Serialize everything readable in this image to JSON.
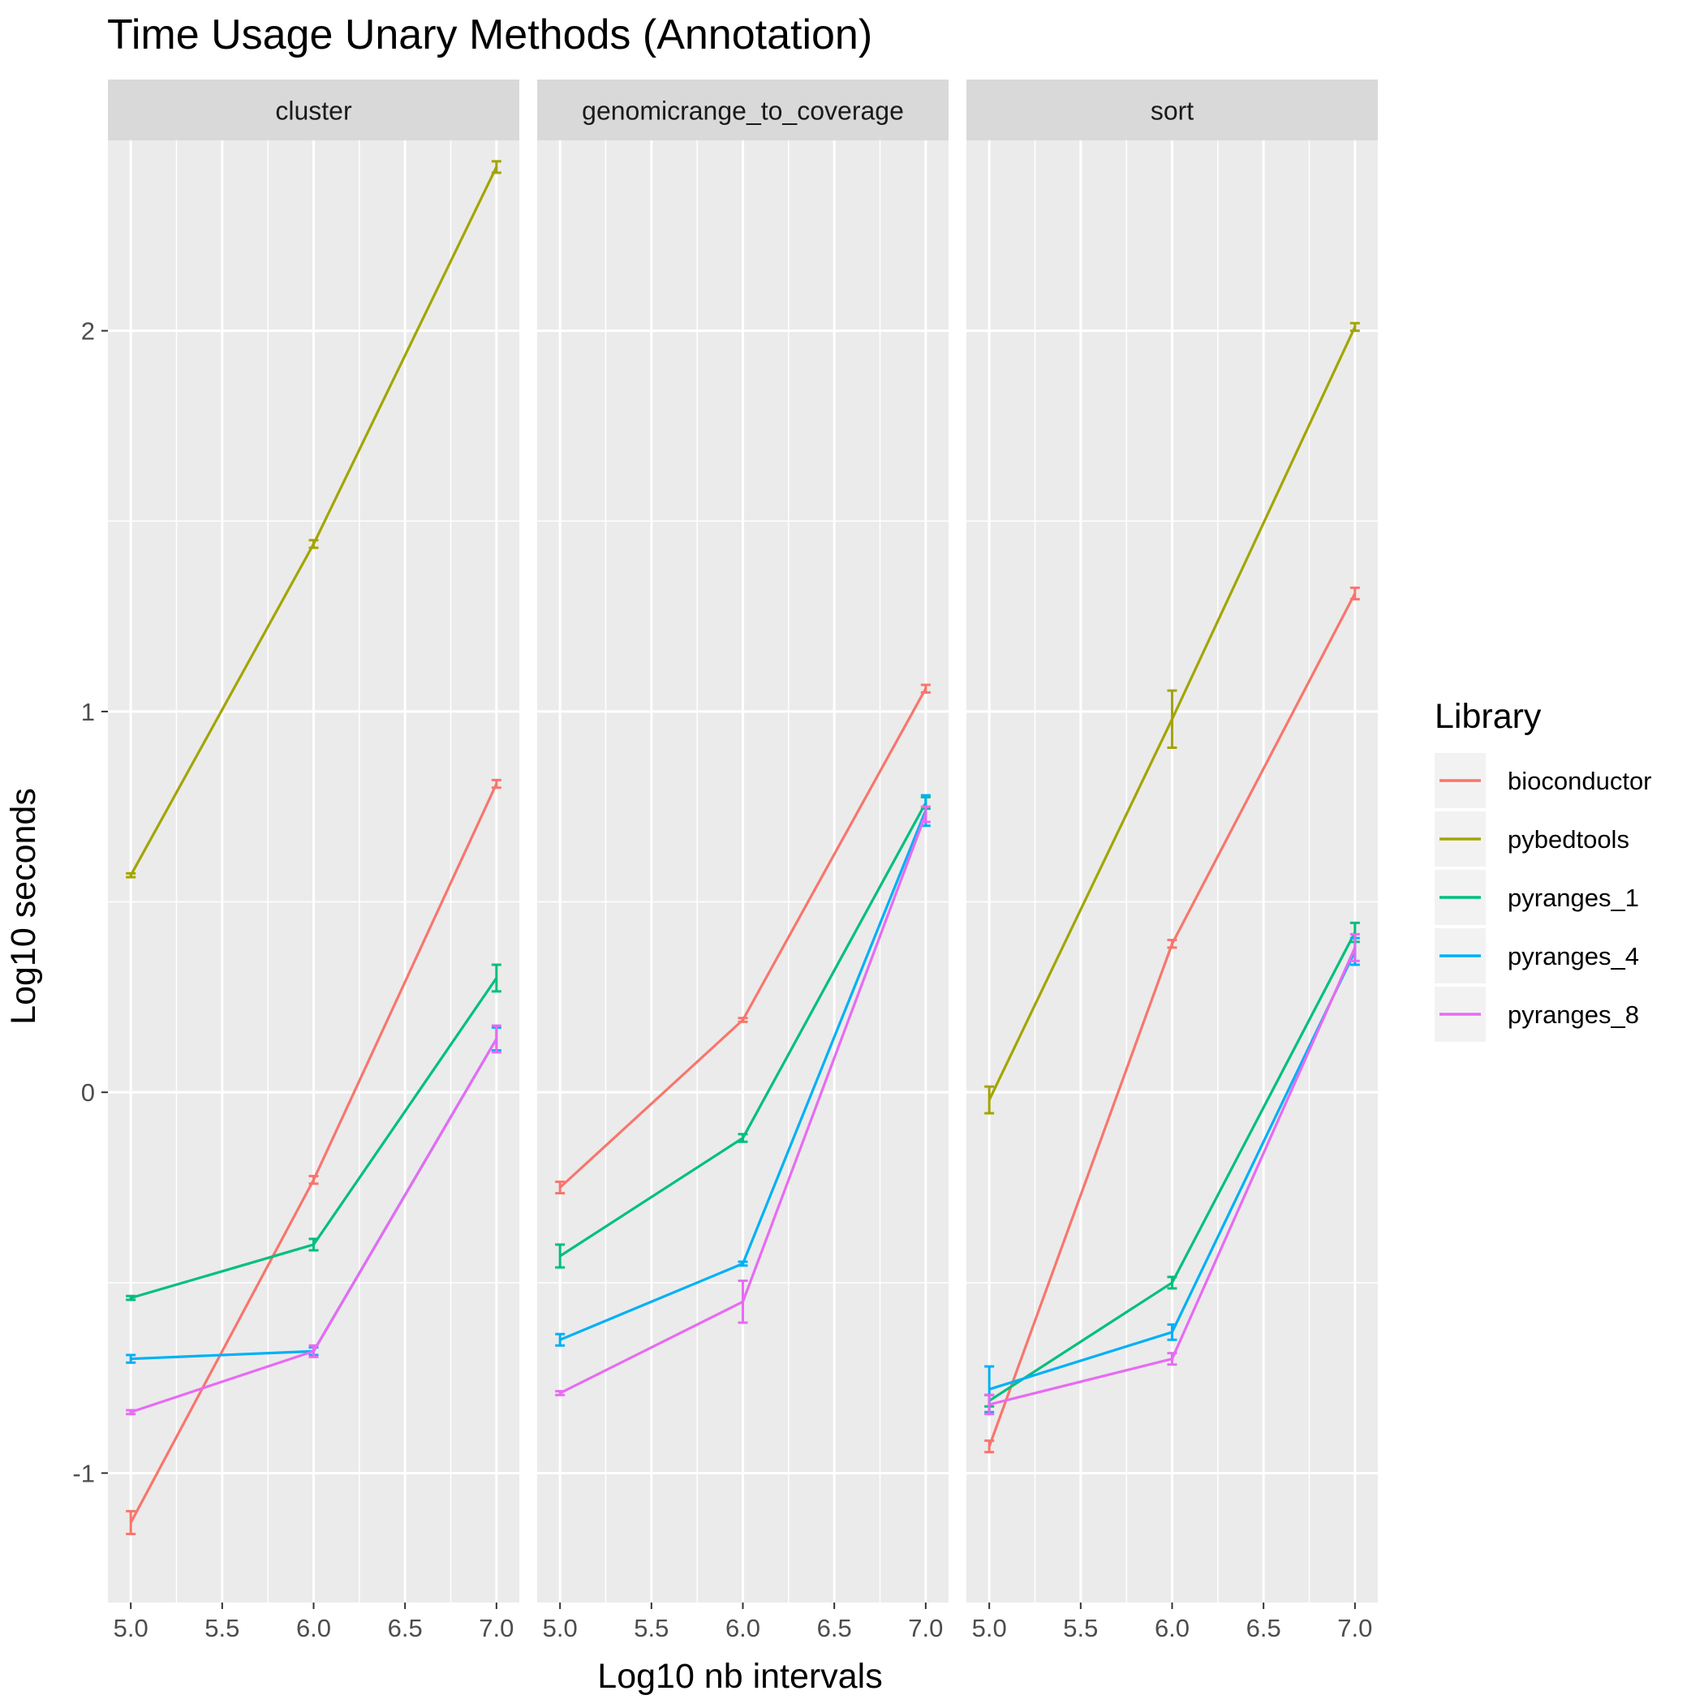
{
  "chart_data": {
    "type": "line",
    "title": "Time Usage Unary Methods (Annotation)",
    "xlabel": "Log10 nb intervals",
    "ylabel": "Log10 seconds",
    "x_ticks": [
      "5.0",
      "5.5",
      "6.0",
      "6.5",
      "7.0"
    ],
    "y_ticks": [
      "-1",
      "0",
      "1",
      "2"
    ],
    "xlim": [
      4.875,
      7.125
    ],
    "ylim": [
      -1.34,
      2.5
    ],
    "grid": true,
    "legend": {
      "title": "Library",
      "position": "right"
    },
    "colors": {
      "bioconductor": "#F8766D",
      "pybedtools": "#A3A500",
      "pyranges_1": "#00BF7D",
      "pyranges_4": "#00B0F6",
      "pyranges_8": "#E76BF3",
      "panel_bg": "#EBEBEB",
      "strip_bg": "#D9D9D9",
      "grid": "#FFFFFF"
    },
    "x": [
      5.0,
      6.0,
      7.0
    ],
    "facets": [
      {
        "name": "cluster",
        "series": [
          {
            "name": "bioconductor",
            "values": [
              -1.13,
              -0.23,
              0.81
            ],
            "err": [
              0.03,
              0.01,
              0.01
            ]
          },
          {
            "name": "pybedtools",
            "values": [
              0.57,
              1.44,
              2.43
            ],
            "err": [
              0.005,
              0.01,
              0.015
            ]
          },
          {
            "name": "pyranges_1",
            "values": [
              -0.54,
              -0.4,
              0.3
            ],
            "err": [
              0.005,
              0.015,
              0.035
            ]
          },
          {
            "name": "pyranges_4",
            "values": [
              -0.7,
              -0.68,
              0.14
            ],
            "err": [
              0.01,
              0.01,
              0.03
            ]
          },
          {
            "name": "pyranges_8",
            "values": [
              -0.84,
              -0.68,
              0.14
            ],
            "err": [
              0.005,
              0.015,
              0.035
            ]
          }
        ]
      },
      {
        "name": "genomicrange_to_coverage",
        "series": [
          {
            "name": "bioconductor",
            "values": [
              -0.25,
              0.19,
              1.06
            ],
            "err": [
              0.015,
              0.005,
              0.01
            ]
          },
          {
            "name": "pyranges_1",
            "values": [
              -0.43,
              -0.12,
              0.76
            ],
            "err": [
              0.03,
              0.01,
              0.015
            ]
          },
          {
            "name": "pyranges_4",
            "values": [
              -0.65,
              -0.45,
              0.74
            ],
            "err": [
              0.015,
              0.005,
              0.04
            ]
          },
          {
            "name": "pyranges_8",
            "values": [
              -0.79,
              -0.55,
              0.73
            ],
            "err": [
              0.005,
              0.055,
              0.02
            ]
          }
        ]
      },
      {
        "name": "sort",
        "series": [
          {
            "name": "bioconductor",
            "values": [
              -0.93,
              0.39,
              1.31
            ],
            "err": [
              0.015,
              0.01,
              0.015
            ]
          },
          {
            "name": "pybedtools",
            "values": [
              -0.02,
              0.98,
              2.01
            ],
            "err": [
              0.035,
              0.075,
              0.01
            ]
          },
          {
            "name": "pyranges_1",
            "values": [
              -0.81,
              -0.5,
              0.42
            ],
            "err": [
              0.015,
              0.015,
              0.025
            ]
          },
          {
            "name": "pyranges_4",
            "values": [
              -0.78,
              -0.63,
              0.37
            ],
            "err": [
              0.06,
              0.02,
              0.035
            ]
          },
          {
            "name": "pyranges_8",
            "values": [
              -0.82,
              -0.7,
              0.38
            ],
            "err": [
              0.025,
              0.015,
              0.035
            ]
          }
        ]
      }
    ]
  }
}
